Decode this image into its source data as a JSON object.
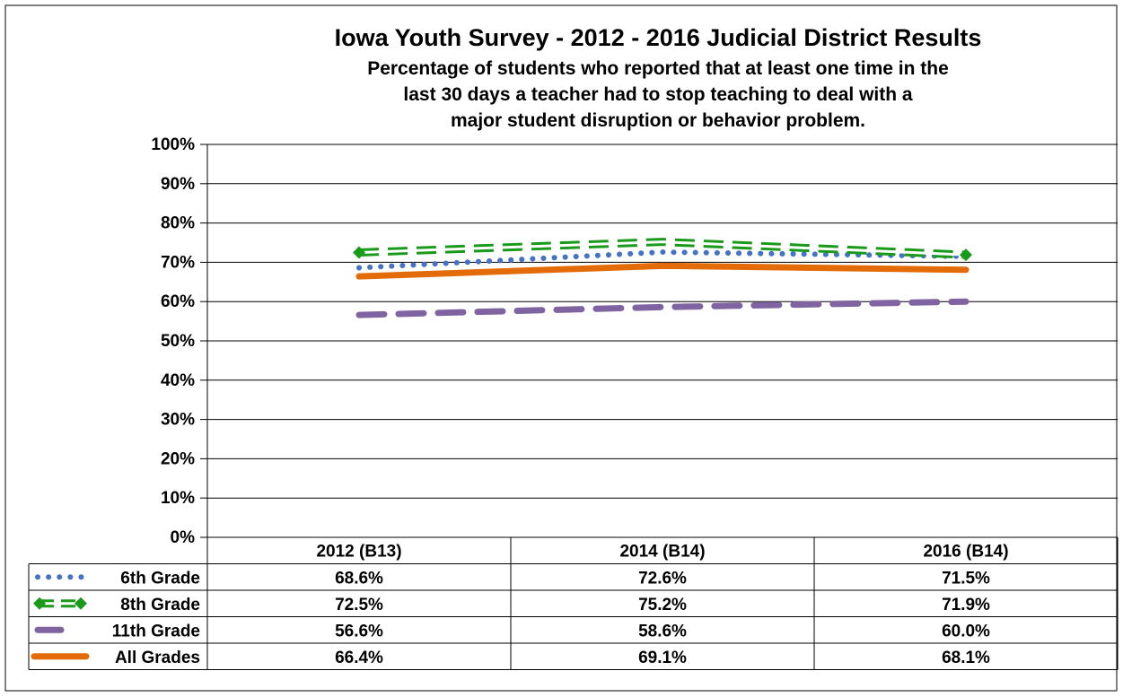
{
  "chart_data": {
    "type": "line",
    "title": "Iowa Youth Survey - 2012 - 2016 Judicial District Results",
    "subtitle": [
      "Percentage of students who reported that at least one time in the",
      "last 30 days a teacher had to stop teaching to deal with a",
      "major student disruption or behavior problem."
    ],
    "categories": [
      "2012 (B13)",
      "2014 (B14)",
      "2016 (B14)"
    ],
    "ylim": [
      0,
      100
    ],
    "yticks": [
      "0%",
      "10%",
      "20%",
      "30%",
      "40%",
      "50%",
      "60%",
      "70%",
      "80%",
      "90%",
      "100%"
    ],
    "grid": true,
    "legend_placement": "data table below plot",
    "series": [
      {
        "name": "6th Grade",
        "values": [
          68.6,
          72.6,
          71.5
        ],
        "labels": [
          "68.6%",
          "72.6%",
          "71.5%"
        ],
        "color": "#4472C4",
        "style": "dotted"
      },
      {
        "name": "8th Grade",
        "values": [
          72.5,
          75.2,
          71.9
        ],
        "labels": [
          "72.5%",
          "75.2%",
          "71.9%"
        ],
        "color": "#1A9A1A",
        "style": "double-dashed-diamond"
      },
      {
        "name": "11th Grade",
        "values": [
          56.6,
          58.6,
          60.0
        ],
        "labels": [
          "56.6%",
          "58.6%",
          "60.0%"
        ],
        "color": "#8064A2",
        "style": "long-dash"
      },
      {
        "name": "All Grades",
        "values": [
          66.4,
          69.1,
          68.1
        ],
        "labels": [
          "66.4%",
          "69.1%",
          "68.1%"
        ],
        "color": "#E36C09",
        "style": "solid-thick"
      }
    ]
  }
}
